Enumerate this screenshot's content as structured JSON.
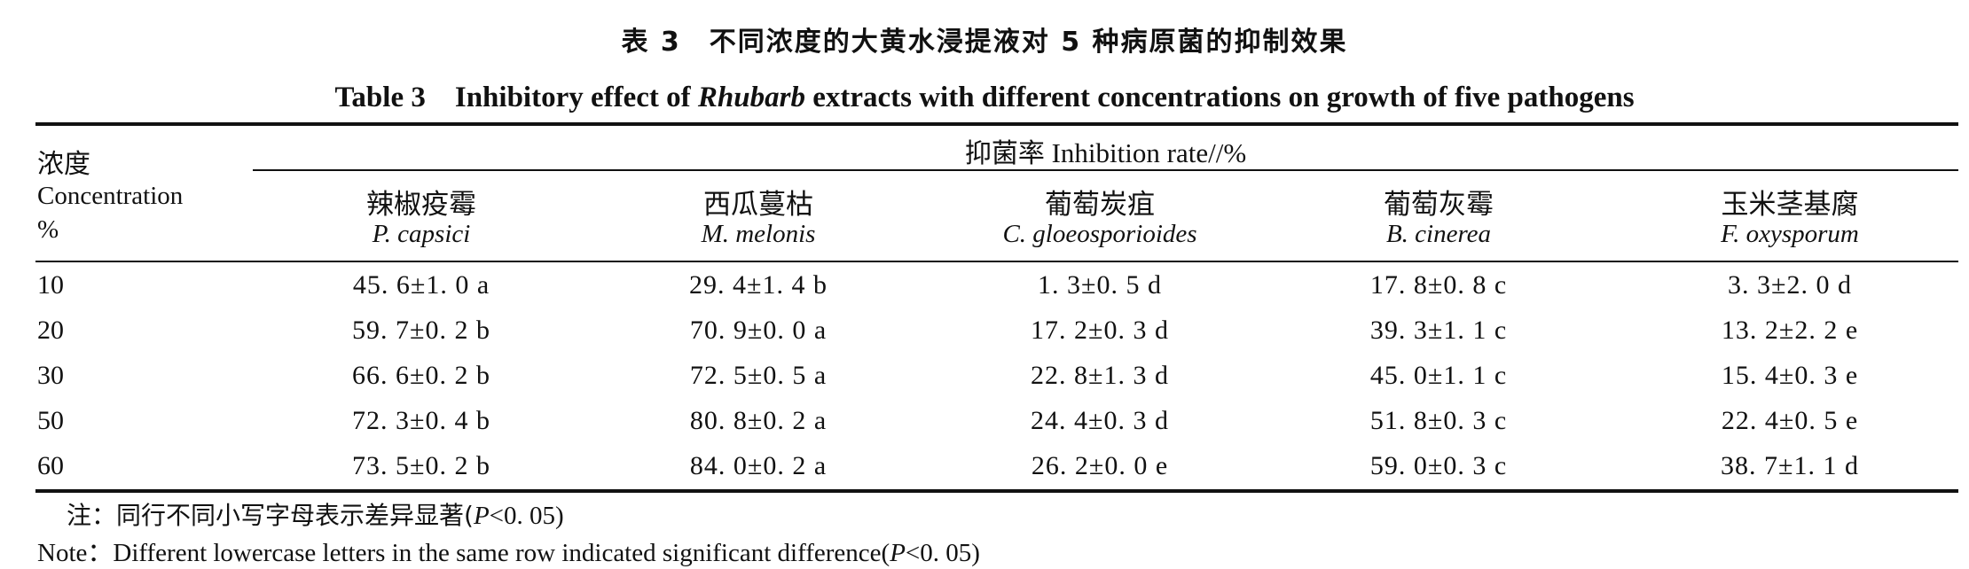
{
  "table": {
    "title_cn": "表 3　不同浓度的大黄水浸提液对 5 种病原菌的抑制效果",
    "title_en_prefix": "Table 3　Inhibitory effect of ",
    "title_en_italic": "Rhubarb",
    "title_en_suffix": " extracts with different concentrations on growth of five pathogens",
    "concentration_cn": "浓度",
    "concentration_en": "Concentration",
    "concentration_unit": "%",
    "inhibition_cn": "抑菌率",
    "inhibition_en": "Inhibition rate//%",
    "columns": [
      {
        "cn": "辣椒疫霉",
        "sci": "P. capsici"
      },
      {
        "cn": "西瓜蔓枯",
        "sci": "M. melonis"
      },
      {
        "cn": "葡萄炭疽",
        "sci": "C. gloeosporioides"
      },
      {
        "cn": "葡萄灰霉",
        "sci": "B. cinerea"
      },
      {
        "cn": "玉米茎基腐",
        "sci": "F. oxysporum"
      }
    ],
    "rows": [
      {
        "conc": "10",
        "values": [
          "45. 6±1. 0 a",
          "29. 4±1. 4 b",
          "1. 3±0. 5 d",
          "17. 8±0. 8 c",
          "3. 3±2. 0 d"
        ]
      },
      {
        "conc": "20",
        "values": [
          "59. 7±0. 2 b",
          "70. 9±0. 0 a",
          "17. 2±0. 3 d",
          "39. 3±1. 1 c",
          "13. 2±2. 2 e"
        ]
      },
      {
        "conc": "30",
        "values": [
          "66. 6±0. 2 b",
          "72. 5±0. 5 a",
          "22. 8±1. 3 d",
          "45. 0±1. 1 c",
          "15. 4±0. 3 e"
        ]
      },
      {
        "conc": "50",
        "values": [
          "72. 3±0. 4 b",
          "80. 8±0. 2 a",
          "24. 4±0. 3 d",
          "51. 8±0. 3 c",
          "22. 4±0. 5 e"
        ]
      },
      {
        "conc": "60",
        "values": [
          "73. 5±0. 2 b",
          "84. 0±0. 2 a",
          "26. 2±0. 0 e",
          "59. 0±0. 3 c",
          "38. 7±1. 1 d"
        ]
      }
    ],
    "note_cn_prefix": "注：同行不同小写字母表示差异显著(",
    "note_en_prefix": "Note：Different lowercase letters in the same row indicated significant difference(",
    "note_p": "P",
    "note_p_suffix": "<0. 05)"
  }
}
